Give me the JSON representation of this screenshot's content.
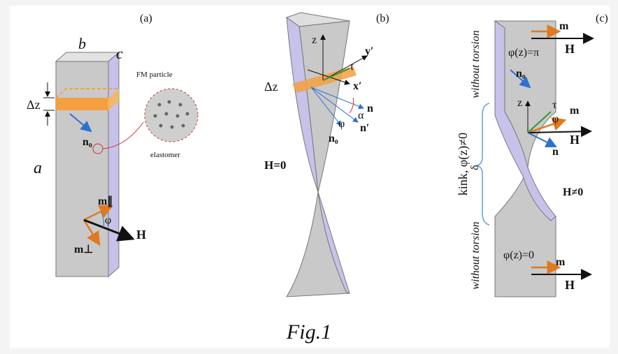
{
  "caption": "Fig.1",
  "panels": [
    {
      "label": "(a)",
      "a": "a",
      "b": "b",
      "c": "c",
      "dz": "Δz",
      "particle": "FM particle",
      "n0": "n₀",
      "elastomer": "elastomer",
      "m_par": "m∥",
      "phi": "φ",
      "m_perp": "m⊥",
      "H": "H"
    },
    {
      "label": "(b)",
      "z": "z",
      "y": "y′",
      "tau": "τ",
      "x": "x′",
      "dz": "Δz",
      "n": "n",
      "alpha": "α",
      "n_prime": "n′",
      "phi": "φ",
      "n0": "n₀",
      "H0": "H=0"
    },
    {
      "label": "(c)",
      "top_note": "without torsion",
      "m_top": "m",
      "H_top": "H",
      "phi_pi": "φ(z)=π",
      "n0": "n₀",
      "z": "z",
      "tau": "τ",
      "m_mid": "m",
      "phi": "φ",
      "H_mid": "H",
      "n": "n",
      "kink": "kink, φ(z)≠0",
      "delta": "δ",
      "H_ne0": "H≠0",
      "bottom_note": "without torsion",
      "phi_0": "φ(z)=0",
      "m_bot": "m",
      "H_bot": "H"
    }
  ]
}
